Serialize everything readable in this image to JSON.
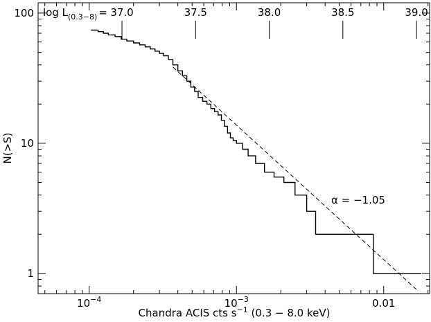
{
  "chart_data": {
    "type": "line",
    "xlabel": "Chandra ACIS cts s⁻¹ (0.3 − 8.0 keV)",
    "xlabel_parts": {
      "main": "Chandra ACIS cts s",
      "sup": "−1",
      "rest": " (0.3 − 8.0 keV)"
    },
    "ylabel": "N(>S)",
    "x_scale": "log",
    "y_scale": "log",
    "xlim": [
      4.5e-05,
      0.0205
    ],
    "ylim": [
      0.7,
      120
    ],
    "grid": false,
    "x_ticks": [
      {
        "value": 0.0001,
        "base": "10",
        "exp": "−4"
      },
      {
        "value": 0.001,
        "base": "10",
        "exp": "−3"
      },
      {
        "value": 0.01,
        "label": "0.01"
      }
    ],
    "y_ticks": [
      {
        "value": 1,
        "label": "1"
      },
      {
        "value": 10,
        "label": "10"
      },
      {
        "value": 100,
        "label": "100"
      }
    ],
    "top_axis": {
      "label_main": "log L",
      "label_sub": "(0.3−8)",
      "label_eq": "=",
      "ticks": [
        {
          "value": 0.000167,
          "label": "37.0"
        },
        {
          "value": 0.000528,
          "label": "37.5"
        },
        {
          "value": 0.00167,
          "label": "38.0"
        },
        {
          "value": 0.00528,
          "label": "38.5"
        },
        {
          "value": 0.0167,
          "label": "39.0"
        }
      ]
    },
    "series": [
      {
        "style": "step",
        "x": [
          0.000103,
          0.000115,
          0.000125,
          0.000135,
          0.00015,
          0.000165,
          0.00018,
          0.0002,
          0.00022,
          0.00024,
          0.00026,
          0.00028,
          0.0003,
          0.00032,
          0.000345,
          0.00037,
          0.0004,
          0.00043,
          0.00046,
          0.00049,
          0.00052,
          0.00055,
          0.00059,
          0.00063,
          0.00067,
          0.00071,
          0.00075,
          0.00079,
          0.00083,
          0.00087,
          0.00091,
          0.00095,
          0.001,
          0.0011,
          0.0012,
          0.00135,
          0.00155,
          0.0018,
          0.0021,
          0.0025,
          0.003,
          0.00345,
          0.0085,
          0.018
        ],
        "y": [
          74,
          72,
          70,
          68,
          66,
          63,
          61,
          59,
          57,
          55,
          53,
          51,
          49,
          47,
          44,
          40,
          36,
          33,
          30,
          27,
          25,
          22.5,
          21,
          20,
          18.5,
          17.5,
          16.5,
          15,
          13.5,
          12,
          11,
          10.5,
          10,
          9,
          8,
          7,
          6,
          5.5,
          5,
          4,
          3,
          2,
          1,
          1
        ]
      },
      {
        "style": "dashed",
        "x": [
          0.00037,
          0.0172
        ],
        "y": [
          38.5,
          0.73
        ]
      }
    ],
    "annotations": [
      {
        "text": "α = −1.05",
        "x": 0.0044,
        "y": 3.65
      }
    ]
  }
}
